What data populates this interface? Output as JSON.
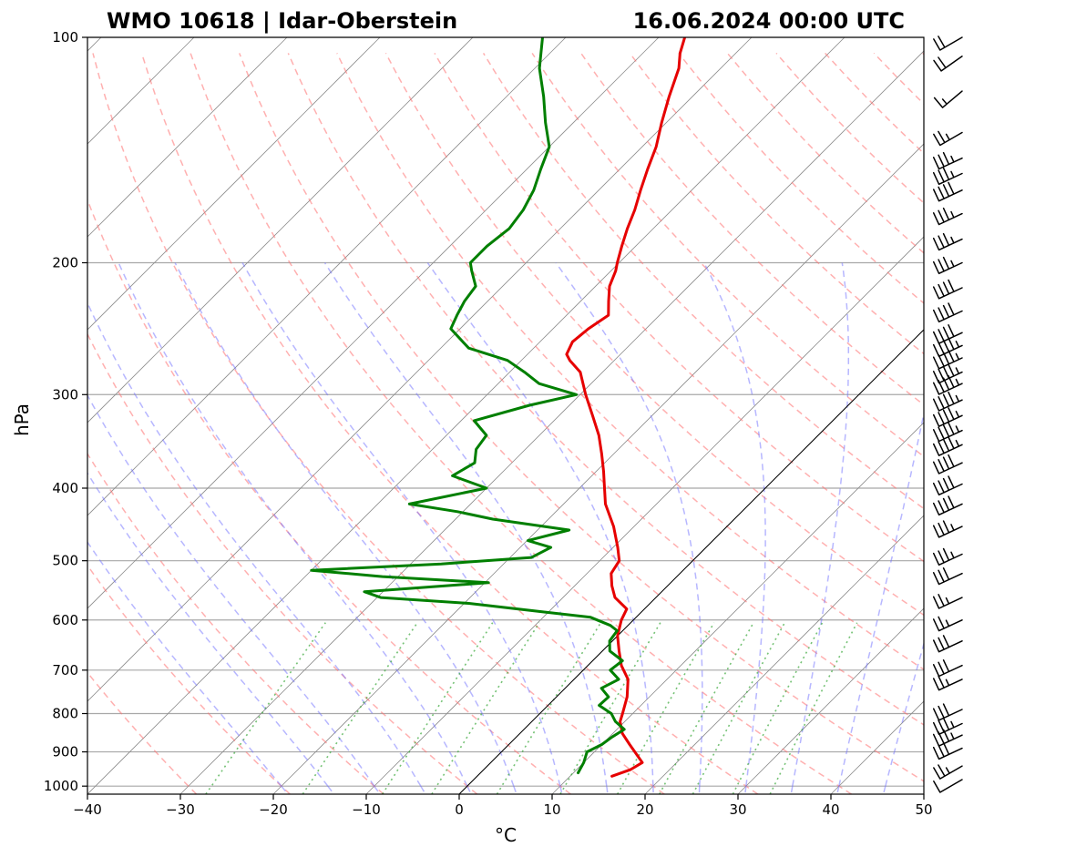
{
  "chart_data": {
    "type": "line",
    "title_left": "WMO 10618 | Idar-Oberstein",
    "title_right": "16.06.2024 00:00 UTC",
    "xlabel": "°C",
    "ylabel": "hPa",
    "xlim": [
      -40,
      50
    ],
    "ylim": [
      1025,
      100
    ],
    "x_ticks": [
      -40,
      -30,
      -20,
      -10,
      0,
      10,
      20,
      30,
      40,
      50
    ],
    "y_ticks": [
      1000,
      900,
      800,
      700,
      600,
      500,
      400,
      300,
      200,
      100
    ],
    "x_tick_labels": [
      "−40",
      "−30",
      "−20",
      "−10",
      "0",
      "10",
      "20",
      "30",
      "40",
      "50"
    ],
    "y_tick_labels": [
      "1000",
      "900",
      "800",
      "700",
      "600",
      "500",
      "400",
      "300",
      "200",
      "100"
    ],
    "reference_line_0c": {
      "temp": 0
    },
    "series": [
      {
        "name": "Temperature",
        "color": "#e60000",
        "points": [
          [
            970,
            14.5
          ],
          [
            950,
            15.8
          ],
          [
            930,
            16.3
          ],
          [
            880,
            13
          ],
          [
            850,
            11
          ],
          [
            820,
            9.5
          ],
          [
            800,
            8.9
          ],
          [
            760,
            7.6
          ],
          [
            720,
            5.8
          ],
          [
            690,
            3.6
          ],
          [
            660,
            1.8
          ],
          [
            630,
            0
          ],
          [
            600,
            -1.3
          ],
          [
            580,
            -1.9
          ],
          [
            560,
            -4.4
          ],
          [
            540,
            -6.0
          ],
          [
            520,
            -7.4
          ],
          [
            500,
            -7.9
          ],
          [
            480,
            -9.5
          ],
          [
            450,
            -12.2
          ],
          [
            420,
            -15.5
          ],
          [
            400,
            -17.3
          ],
          [
            380,
            -19.2
          ],
          [
            360,
            -21.3
          ],
          [
            340,
            -23.6
          ],
          [
            320,
            -26.4
          ],
          [
            300,
            -29.4
          ],
          [
            280,
            -32.4
          ],
          [
            270,
            -34.8
          ],
          [
            265,
            -35.8
          ],
          [
            255,
            -36.5
          ],
          [
            245,
            -36.2
          ],
          [
            235,
            -35.5
          ],
          [
            225,
            -37.0
          ],
          [
            215,
            -38.5
          ],
          [
            205,
            -39.5
          ],
          [
            200,
            -40.2
          ],
          [
            190,
            -41.5
          ],
          [
            180,
            -42.8
          ],
          [
            170,
            -44.0
          ],
          [
            160,
            -45.5
          ],
          [
            150,
            -47.0
          ],
          [
            140,
            -48.5
          ],
          [
            130,
            -50.5
          ],
          [
            120,
            -52.5
          ],
          [
            110,
            -54.5
          ],
          [
            105,
            -56.0
          ],
          [
            100,
            -57.2
          ]
        ]
      },
      {
        "name": "Dewpoint",
        "color": "#007f00",
        "points": [
          [
            960,
            10.5
          ],
          [
            930,
            10.0
          ],
          [
            900,
            9.2
          ],
          [
            880,
            10
          ],
          [
            860,
            10.3
          ],
          [
            840,
            10.8
          ],
          [
            820,
            9
          ],
          [
            800,
            7.7
          ],
          [
            780,
            5.5
          ],
          [
            760,
            5.6
          ],
          [
            740,
            3.9
          ],
          [
            720,
            4.8
          ],
          [
            700,
            2.9
          ],
          [
            680,
            3.2
          ],
          [
            660,
            0.8
          ],
          [
            640,
            -0.3
          ],
          [
            620,
            -0.6
          ],
          [
            610,
            -1.9
          ],
          [
            595,
            -4.9
          ],
          [
            585,
            -10.7
          ],
          [
            570,
            -19.5
          ],
          [
            560,
            -29.6
          ],
          [
            550,
            -32.0
          ],
          [
            535,
            -19.6
          ],
          [
            525,
            -31.7
          ],
          [
            515,
            -40.0
          ],
          [
            505,
            -26.7
          ],
          [
            495,
            -17.7
          ],
          [
            480,
            -16.7
          ],
          [
            470,
            -19.9
          ],
          [
            455,
            -16.6
          ],
          [
            440,
            -26.0
          ],
          [
            430,
            -30.6
          ],
          [
            420,
            -36.6
          ],
          [
            400,
            -30.0
          ],
          [
            385,
            -35.0
          ],
          [
            370,
            -34.0
          ],
          [
            355,
            -35.3
          ],
          [
            340,
            -35.7
          ],
          [
            325,
            -38.6
          ],
          [
            310,
            -34.3
          ],
          [
            300,
            -30.4
          ],
          [
            290,
            -35.6
          ],
          [
            280,
            -38.4
          ],
          [
            270,
            -41.5
          ],
          [
            260,
            -47.0
          ],
          [
            245,
            -51.0
          ],
          [
            235,
            -51.8
          ],
          [
            225,
            -52.5
          ],
          [
            215,
            -52.9
          ],
          [
            205,
            -55.0
          ],
          [
            200,
            -56.0
          ],
          [
            190,
            -56.0
          ],
          [
            180,
            -55.5
          ],
          [
            170,
            -56.0
          ],
          [
            160,
            -57.0
          ],
          [
            150,
            -58.5
          ],
          [
            140,
            -60.0
          ],
          [
            130,
            -63.0
          ],
          [
            120,
            -66.0
          ],
          [
            110,
            -69.5
          ],
          [
            100,
            -72.5
          ]
        ]
      }
    ],
    "wind_barbs": [
      {
        "pressure": 980,
        "speed_kt": 10,
        "direction_deg": 240
      },
      {
        "pressure": 940,
        "speed_kt": 25,
        "direction_deg": 240
      },
      {
        "pressure": 890,
        "speed_kt": 30,
        "direction_deg": 245
      },
      {
        "pressure": 855,
        "speed_kt": 35,
        "direction_deg": 245
      },
      {
        "pressure": 825,
        "speed_kt": 35,
        "direction_deg": 245
      },
      {
        "pressure": 790,
        "speed_kt": 30,
        "direction_deg": 245
      },
      {
        "pressure": 720,
        "speed_kt": 25,
        "direction_deg": 245
      },
      {
        "pressure": 690,
        "speed_kt": 30,
        "direction_deg": 245
      },
      {
        "pressure": 640,
        "speed_kt": 30,
        "direction_deg": 245
      },
      {
        "pressure": 600,
        "speed_kt": 25,
        "direction_deg": 245
      },
      {
        "pressure": 560,
        "speed_kt": 25,
        "direction_deg": 245
      },
      {
        "pressure": 520,
        "speed_kt": 30,
        "direction_deg": 245
      },
      {
        "pressure": 490,
        "speed_kt": 35,
        "direction_deg": 245
      },
      {
        "pressure": 450,
        "speed_kt": 35,
        "direction_deg": 245
      },
      {
        "pressure": 420,
        "speed_kt": 40,
        "direction_deg": 245
      },
      {
        "pressure": 395,
        "speed_kt": 40,
        "direction_deg": 245
      },
      {
        "pressure": 370,
        "speed_kt": 40,
        "direction_deg": 245
      },
      {
        "pressure": 350,
        "speed_kt": 45,
        "direction_deg": 245
      },
      {
        "pressure": 335,
        "speed_kt": 45,
        "direction_deg": 245
      },
      {
        "pressure": 320,
        "speed_kt": 45,
        "direction_deg": 245
      },
      {
        "pressure": 305,
        "speed_kt": 45,
        "direction_deg": 245
      },
      {
        "pressure": 290,
        "speed_kt": 45,
        "direction_deg": 245
      },
      {
        "pressure": 280,
        "speed_kt": 45,
        "direction_deg": 245
      },
      {
        "pressure": 268,
        "speed_kt": 45,
        "direction_deg": 245
      },
      {
        "pressure": 258,
        "speed_kt": 45,
        "direction_deg": 245
      },
      {
        "pressure": 248,
        "speed_kt": 40,
        "direction_deg": 245
      },
      {
        "pressure": 232,
        "speed_kt": 40,
        "direction_deg": 245
      },
      {
        "pressure": 216,
        "speed_kt": 40,
        "direction_deg": 245
      },
      {
        "pressure": 200,
        "speed_kt": 35,
        "direction_deg": 245
      },
      {
        "pressure": 186,
        "speed_kt": 35,
        "direction_deg": 245
      },
      {
        "pressure": 172,
        "speed_kt": 35,
        "direction_deg": 245
      },
      {
        "pressure": 160,
        "speed_kt": 40,
        "direction_deg": 245
      },
      {
        "pressure": 152,
        "speed_kt": 35,
        "direction_deg": 245
      },
      {
        "pressure": 145,
        "speed_kt": 35,
        "direction_deg": 245
      },
      {
        "pressure": 134,
        "speed_kt": 25,
        "direction_deg": 240
      },
      {
        "pressure": 118,
        "speed_kt": 15,
        "direction_deg": 230
      },
      {
        "pressure": 106,
        "speed_kt": 20,
        "direction_deg": 235
      },
      {
        "pressure": 100,
        "speed_kt": 20,
        "direction_deg": 240
      }
    ]
  }
}
